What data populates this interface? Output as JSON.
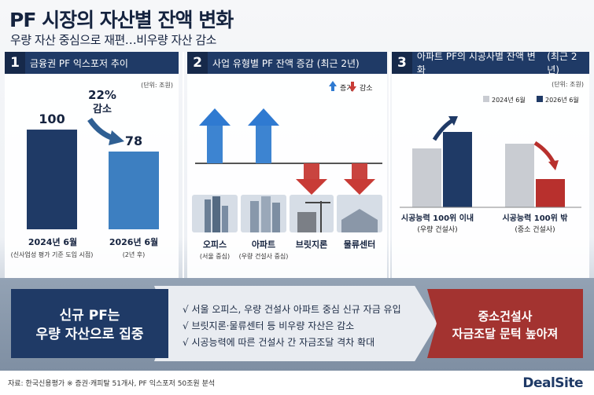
{
  "header": {
    "title": "PF 시장의 자산별 잔액 변화",
    "subtitle": "우량 자산 중심으로 재편…비우량 자산 감소"
  },
  "panel1": {
    "num": "1",
    "title": "금융권 PF 익스포저 추이",
    "unit": "(단위: 조원)",
    "value_labels": [
      "100",
      "78"
    ],
    "change_pct": "22%",
    "change_word": "감소",
    "x_labels": [
      "2024년 6월",
      "2026년 6월"
    ],
    "x_sublabels": [
      "(신사업성 평가 기준 도입 시점)",
      "(2년 후)"
    ]
  },
  "panel2": {
    "num": "2",
    "title": "사업 유형별 PF 잔액 증감",
    "title_suffix": "(최근 2년)",
    "legend_up": "증가",
    "legend_down": "감소",
    "items": [
      {
        "label": "오피스",
        "sub": "(서울 중심)",
        "direction": "up"
      },
      {
        "label": "아파트",
        "sub": "(우량 건설사 중심)",
        "direction": "up"
      },
      {
        "label": "브릿지론",
        "sub": "",
        "direction": "down"
      },
      {
        "label": "물류센터",
        "sub": "",
        "direction": "down"
      }
    ]
  },
  "panel3": {
    "num": "3",
    "title": "아파트 PF의 시공사별 잔액 변화",
    "title_suffix": "(최근 2년)",
    "unit": "(단위: 조원)",
    "legend": [
      "2024년 6월",
      "2026년 6월"
    ],
    "groups": [
      {
        "label": "시공능력 100위 이내",
        "sub": "(우량 건설사)"
      },
      {
        "label": "시공능력 100위 밖",
        "sub": "(중소 건설사)"
      }
    ]
  },
  "chart_data": [
    {
      "type": "bar",
      "title": "금융권 PF 익스포저 추이",
      "categories": [
        "2024년 6월",
        "2026년 6월"
      ],
      "values": [
        100,
        78
      ],
      "ylabel": "(단위: 조원)",
      "ylim": [
        0,
        115
      ]
    },
    {
      "type": "bar",
      "title": "사업 유형별 PF 잔액 증감",
      "categories": [
        "오피스",
        "아파트",
        "브릿지론",
        "물류센터"
      ],
      "series": [
        {
          "name": "증가",
          "direction": [
            1,
            1,
            0,
            0
          ]
        },
        {
          "name": "감소",
          "direction": [
            0,
            0,
            1,
            1
          ]
        }
      ]
    },
    {
      "type": "bar",
      "title": "아파트 PF의 시공사별 잔액 변화",
      "categories": [
        "시공능력 100위 이내",
        "시공능력 100위 밖"
      ],
      "series": [
        {
          "name": "2024년 6월",
          "values": [
            25,
            27
          ]
        },
        {
          "name": "2026년 6월",
          "values": [
            32,
            12
          ]
        }
      ],
      "ylim": [
        0,
        40
      ]
    }
  ],
  "bottom": {
    "left": [
      "신규 PF는",
      "우량 자산으로 집중"
    ],
    "checks": [
      "√ 서울 오피스, 우량 건설사 아파트 중심 신규 자금 유입",
      "√ 브릿지론·물류센터 등 비우량 자산은 감소",
      "√ 시공능력에 따른 건설사 간 자금조달 격차 확대"
    ],
    "right": [
      "중소건설사",
      "자금조달 문턱 높아져"
    ]
  },
  "footer": {
    "source": "자료: 한국신용평가  ※ 증권·캐피탈 51개사, PF 익스포저 50조원 분석",
    "logo": "DealSite"
  },
  "colors": {
    "navy": "#1f3a66",
    "blue_bar": "#3d7fc1",
    "up_arrow": "#2f7ad1",
    "down_arrow": "#c83b36",
    "grey_bar": "#c9ccd2",
    "red_bar": "#b8302d"
  }
}
